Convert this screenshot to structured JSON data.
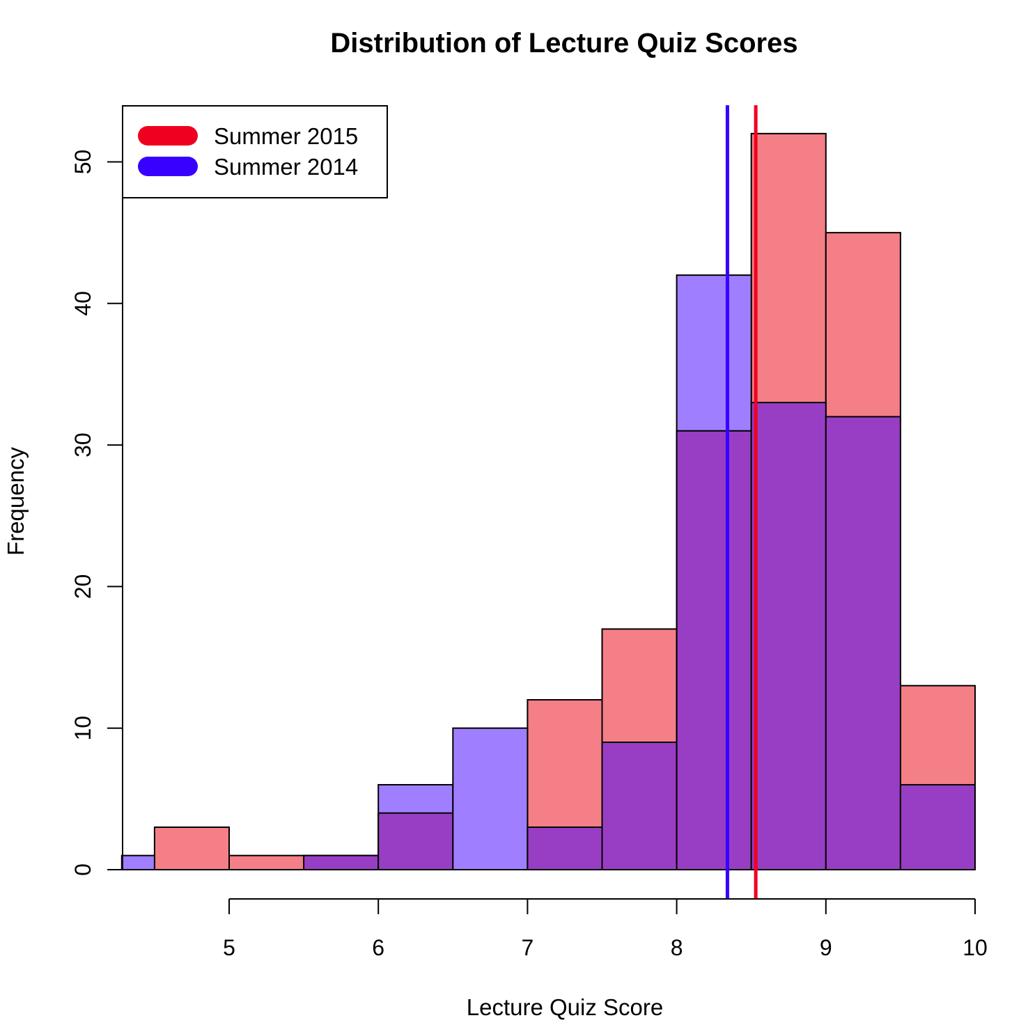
{
  "chart_data": {
    "type": "histogram",
    "title": "Distribution of Lecture Quiz Scores",
    "xlabel": "Lecture Quiz Score",
    "ylabel": "Frequency",
    "xlim": [
      4.28,
      10
    ],
    "ylim": [
      0,
      54
    ],
    "x_ticks": [
      5,
      6,
      7,
      8,
      9,
      10
    ],
    "y_ticks": [
      0,
      10,
      20,
      30,
      40,
      50
    ],
    "legend_position": "top-left",
    "series": [
      {
        "name": "Summer 2015",
        "color": "#f47f87",
        "line_color": "#f00020",
        "mean": 8.53,
        "bins": [
          {
            "start": 4.5,
            "end": 5.0,
            "count": 3
          },
          {
            "start": 5.0,
            "end": 5.5,
            "count": 1
          },
          {
            "start": 5.5,
            "end": 6.0,
            "count": 1
          },
          {
            "start": 6.0,
            "end": 6.5,
            "count": 4
          },
          {
            "start": 6.5,
            "end": 7.0,
            "count": 0
          },
          {
            "start": 7.0,
            "end": 7.5,
            "count": 12
          },
          {
            "start": 7.5,
            "end": 8.0,
            "count": 17
          },
          {
            "start": 8.0,
            "end": 8.5,
            "count": 31
          },
          {
            "start": 8.5,
            "end": 9.0,
            "count": 52
          },
          {
            "start": 9.0,
            "end": 9.5,
            "count": 45
          },
          {
            "start": 9.5,
            "end": 10.0,
            "count": 13
          }
        ]
      },
      {
        "name": "Summer 2014",
        "color": "#9f7fff",
        "line_color": "#3700ff",
        "mean": 8.34,
        "bins": [
          {
            "start": 4.0,
            "end": 4.5,
            "count": 1
          },
          {
            "start": 5.5,
            "end": 6.0,
            "count": 1
          },
          {
            "start": 6.0,
            "end": 6.5,
            "count": 6
          },
          {
            "start": 6.5,
            "end": 7.0,
            "count": 10
          },
          {
            "start": 7.0,
            "end": 7.5,
            "count": 3
          },
          {
            "start": 7.5,
            "end": 8.0,
            "count": 9
          },
          {
            "start": 8.0,
            "end": 8.5,
            "count": 42
          },
          {
            "start": 8.5,
            "end": 9.0,
            "count": 33
          },
          {
            "start": 9.0,
            "end": 9.5,
            "count": 32
          },
          {
            "start": 9.5,
            "end": 10.0,
            "count": 6
          }
        ]
      }
    ],
    "overlap_color": "#983ec4"
  }
}
